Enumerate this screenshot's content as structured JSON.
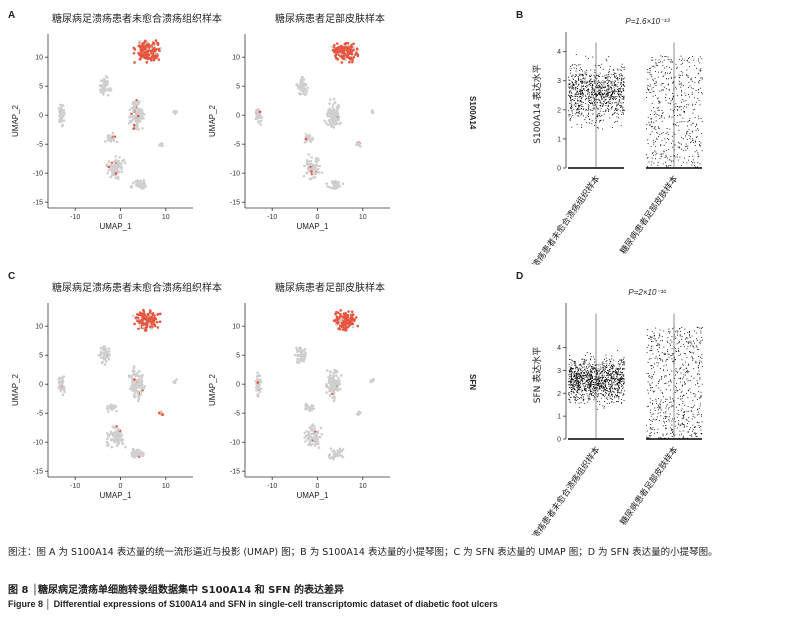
{
  "panels": {
    "A": {
      "letter": "A",
      "left_title": "糖尿病足溃疡患者未愈合溃疡组织样本",
      "right_title": "糖尿病患者足部皮肤样本",
      "gene": "S100A14",
      "xlabel": "UMAP_1",
      "ylabel": "UMAP_2",
      "xticks": [
        "-10",
        "0",
        "10"
      ],
      "yticks": [
        "10",
        "5",
        "0",
        "-5",
        "-10",
        "-15"
      ]
    },
    "C": {
      "letter": "C",
      "left_title": "糖尿病足溃疡患者未愈合溃疡组织样本",
      "right_title": "糖尿病患者足部皮肤样本",
      "gene": "SFN",
      "xlabel": "UMAP_1",
      "ylabel": "UMAP_2",
      "xticks": [
        "-10",
        "0",
        "10"
      ],
      "yticks": [
        "10",
        "5",
        "0",
        "-5",
        "-10",
        "-15"
      ]
    },
    "B": {
      "letter": "B",
      "pvalue": "P=1.6×10⁻¹³",
      "ylabel": "S100A14 表达水平",
      "groups": [
        "糖尿病足溃疡患者未愈合溃疡组织样本",
        "糖尿病患者足部皮肤样本"
      ],
      "yticks": [
        "0",
        "1",
        "2",
        "3",
        "4"
      ]
    },
    "D": {
      "letter": "D",
      "pvalue": "P=2×10⁻¹⁶",
      "ylabel": "SFN 表达水平",
      "groups": [
        "糖尿病足溃疡患者未愈合溃疡组织样本",
        "糖尿病患者足部皮肤样本"
      ],
      "yticks": [
        "0",
        "1",
        "2",
        "3",
        "4"
      ]
    }
  },
  "caption": "图注：图 A 为 S100A14 表达量的统一流形逼近与投影 (UMAP) 图；B 为 S100A14 表达量的小提琴图；C 为 SFN 表达量的 UMAP 图；D 为 SFN 表达量的小提琴图。",
  "figure_cn": "图 8 │糖尿病足溃疡单细胞转录组数据集中 S100A14 和 SFN 的表达差异",
  "figure_en": "Figure 8 │ Differential expressions of S100A14 and SFN in single-cell transcriptomic dataset of diabetic foot ulcers",
  "colors": {
    "cells": "#cfcfcf",
    "expressed": "#e8553e",
    "axis": "#333333"
  }
}
